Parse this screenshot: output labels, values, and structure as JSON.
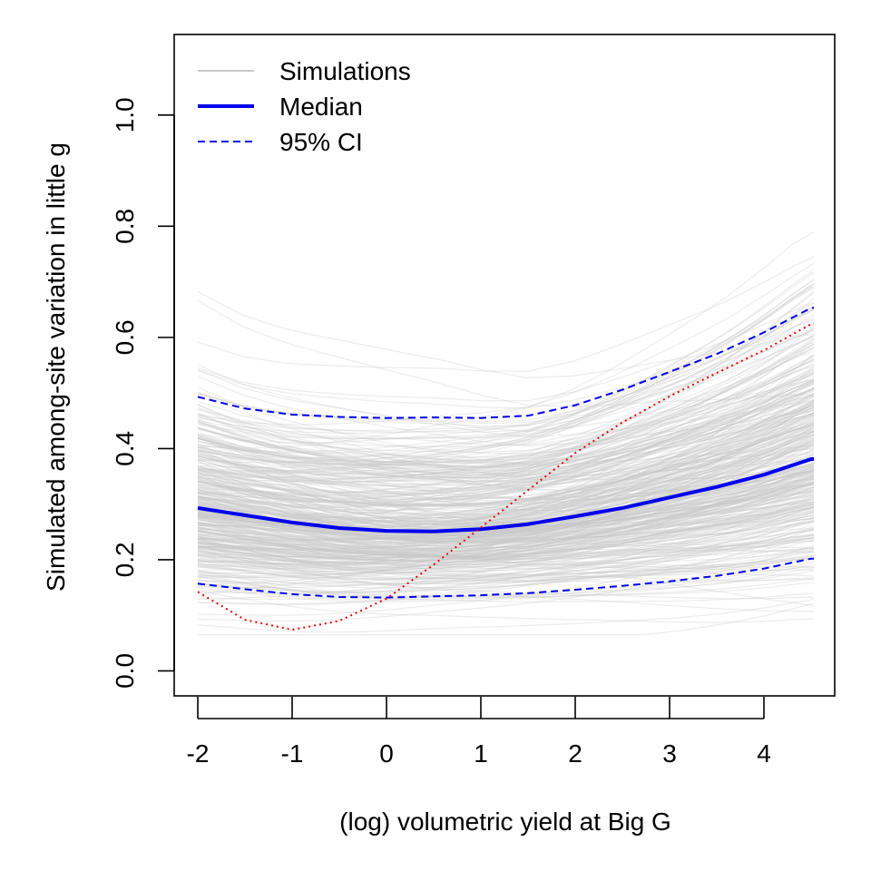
{
  "chart_data": {
    "type": "line",
    "xlabel": "(log) volumetric yield at Big G",
    "ylabel": "Simulated among-site variation in little g",
    "xlim": [
      -2.25,
      4.75
    ],
    "ylim": [
      -0.045,
      1.145
    ],
    "x_ticks": [
      -2,
      -1,
      0,
      1,
      2,
      3,
      4
    ],
    "x_tick_labels": [
      "-2",
      "-1",
      "0",
      "1",
      "2",
      "3",
      "4"
    ],
    "y_ticks": [
      0.0,
      0.2,
      0.4,
      0.6,
      0.8,
      1.0
    ],
    "y_tick_labels": [
      "0.0",
      "0.2",
      "0.4",
      "0.6",
      "0.8",
      "1.0"
    ],
    "grid": false,
    "legend": {
      "position": "top-left",
      "entries": [
        {
          "label": "Simulations",
          "style": "solid-thin",
          "color": "#c8c8c8"
        },
        {
          "label": "Median",
          "style": "solid-thick",
          "color": "#0000ee"
        },
        {
          "label": "95% CI",
          "style": "dashed",
          "color": "#0000ee"
        }
      ]
    },
    "colors": {
      "simulations": "#c8c8c8",
      "median": "#0000ee",
      "ci": "#0000ee",
      "observed": "#ee0000"
    },
    "series": [
      {
        "name": "Median",
        "style": "solid-thick",
        "x": [
          -2,
          -1.5,
          -1,
          -0.5,
          0,
          0.5,
          1,
          1.5,
          2,
          2.5,
          3,
          3.5,
          4,
          4.5
        ],
        "y": [
          0.293,
          0.28,
          0.267,
          0.257,
          0.252,
          0.251,
          0.255,
          0.264,
          0.278,
          0.293,
          0.312,
          0.331,
          0.353,
          0.381
        ]
      },
      {
        "name": "95% CI",
        "style": "dashed",
        "x": [
          -2,
          -1.5,
          -1,
          -0.5,
          0,
          0.5,
          1,
          1.5,
          2,
          2.5,
          3,
          3.5,
          4,
          4.5
        ],
        "y": [
          0.493,
          0.472,
          0.461,
          0.457,
          0.455,
          0.456,
          0.455,
          0.459,
          0.478,
          0.506,
          0.538,
          0.57,
          0.609,
          0.653
        ]
      },
      {
        "name": "",
        "style": "dashed",
        "x": [
          -2,
          -1.5,
          -1,
          -0.5,
          0,
          0.5,
          1,
          1.5,
          2,
          2.5,
          3,
          3.5,
          4,
          4.5
        ],
        "y": [
          0.157,
          0.147,
          0.138,
          0.133,
          0.132,
          0.134,
          0.136,
          0.14,
          0.146,
          0.153,
          0.161,
          0.171,
          0.184,
          0.202
        ]
      },
      {
        "name": "",
        "style": "dotted",
        "x": [
          -2,
          -1.5,
          -1,
          -0.5,
          0,
          0.5,
          1,
          1.5,
          2,
          2.5,
          3,
          3.5,
          4,
          4.5
        ],
        "y": [
          0.142,
          0.092,
          0.074,
          0.09,
          0.13,
          0.191,
          0.258,
          0.325,
          0.392,
          0.447,
          0.494,
          0.536,
          0.577,
          0.624
        ]
      }
    ]
  }
}
